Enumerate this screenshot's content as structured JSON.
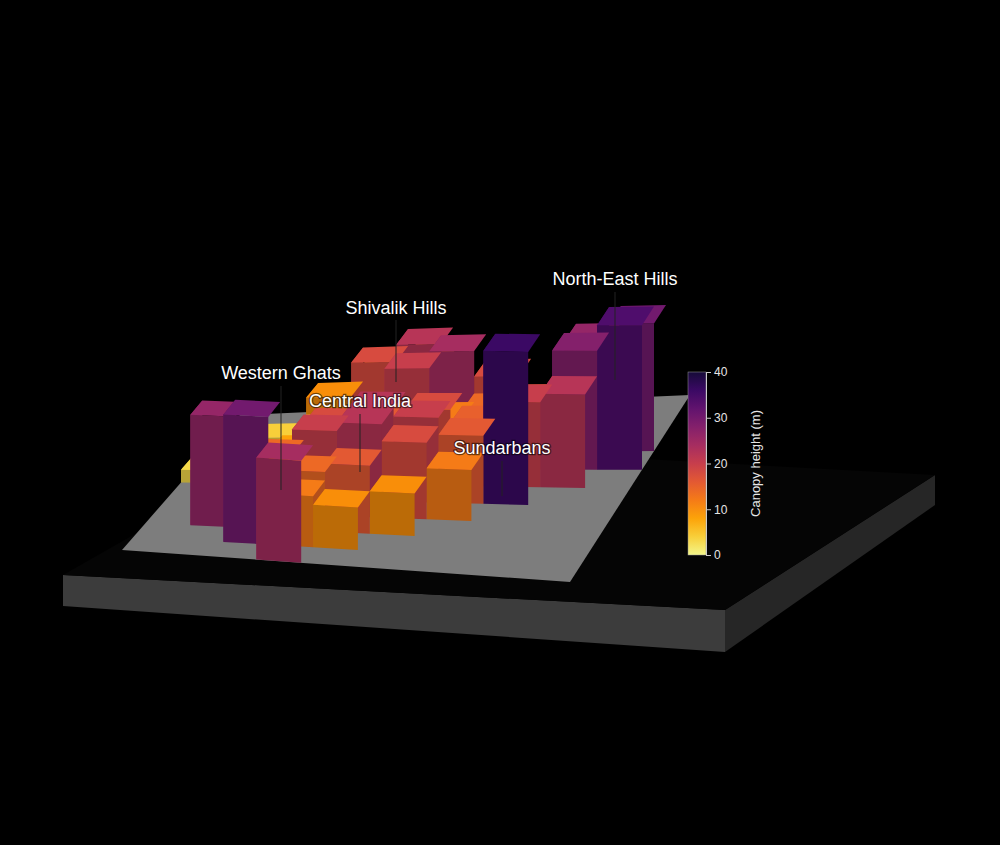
{
  "chart_data": {
    "type": "3d-surface",
    "annotations": [
      "Western Ghats",
      "Central India",
      "Shivalik Hills",
      "Sundarbans",
      "North-East Hills"
    ],
    "cells": [
      [
        null,
        null,
        null,
        14,
        16,
        null,
        null,
        null,
        null,
        null
      ],
      [
        null,
        null,
        10,
        18,
        22,
        null,
        null,
        null,
        null,
        null
      ],
      [
        null,
        4,
        6,
        8,
        20,
        24,
        18,
        null,
        26,
        30
      ],
      [
        2,
        3,
        5,
        8,
        10,
        12,
        14,
        16,
        28,
        34
      ],
      [
        3,
        5,
        8,
        14,
        16,
        18,
        15,
        20,
        22,
        null
      ],
      [
        null,
        6,
        10,
        18,
        22,
        20,
        16,
        36,
        null,
        null
      ],
      [
        null,
        12,
        14,
        20,
        22,
        18,
        12,
        null,
        null,
        null
      ],
      [
        null,
        26,
        12,
        14,
        16,
        10,
        null,
        null,
        null,
        null
      ],
      [
        null,
        null,
        30,
        12,
        10,
        null,
        null,
        null,
        null,
        null
      ],
      [
        null,
        null,
        null,
        24,
        null,
        null,
        null,
        null,
        null,
        null
      ]
    ],
    "colorbar": {
      "title": "Canopy height (m)",
      "range": [
        0,
        40
      ],
      "ticks": [
        0,
        10,
        20,
        30,
        40
      ]
    }
  }
}
